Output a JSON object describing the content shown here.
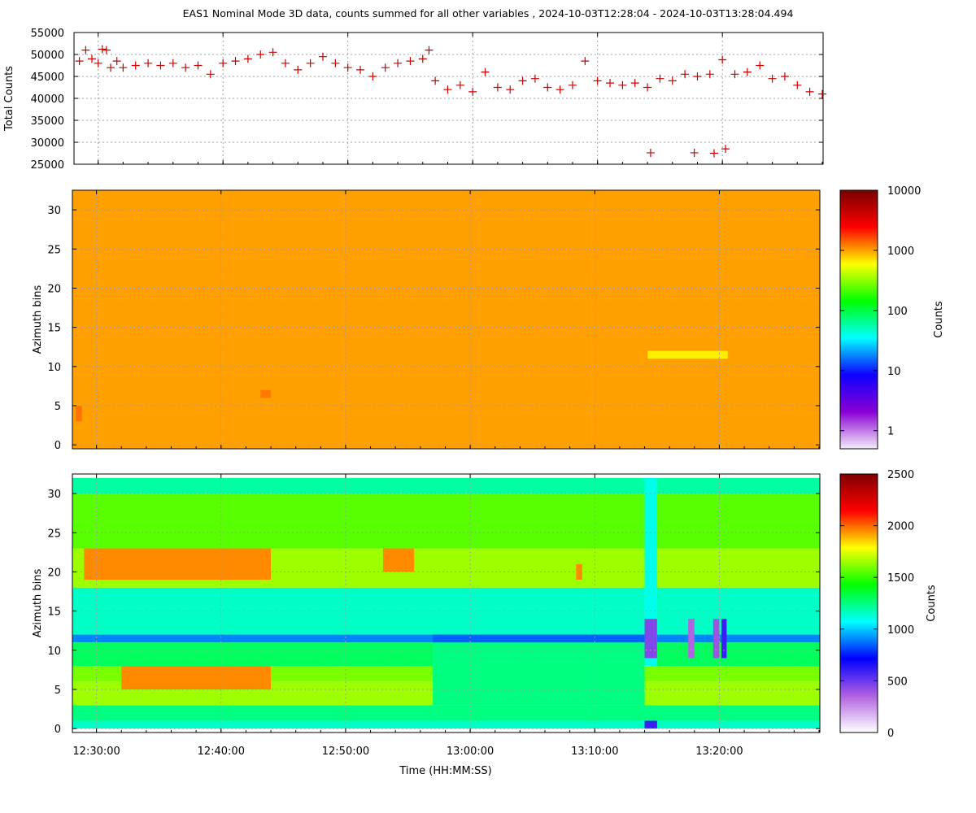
{
  "title": "EAS1  Nominal Mode 3D data, counts summed for all other variables ,  2024-10-03T12:28:04 - 2024-10-03T13:28:04.494",
  "xlabel": "Time (HH:MM:SS)",
  "xticks": [
    "12:30:00",
    "12:40:00",
    "12:50:00",
    "13:00:00",
    "13:10:00",
    "13:20:00"
  ],
  "colors": {
    "series": "#cc0000",
    "grid": "#a0a0a0"
  },
  "chart_data": [
    {
      "type": "scatter",
      "marker": "plus",
      "ylabel": "Total Counts",
      "xlim": [
        "12:28:04",
        "13:28:04"
      ],
      "ylim": [
        25000,
        55000
      ],
      "yticks": [
        "25000",
        "30000",
        "35000",
        "40000",
        "45000",
        "50000",
        "55000"
      ],
      "grid": true,
      "points": [
        [
          "12:28:30",
          48500
        ],
        [
          "12:29:00",
          51000
        ],
        [
          "12:29:30",
          49000
        ],
        [
          "12:30:00",
          48000
        ],
        [
          "12:30:20",
          51200
        ],
        [
          "12:30:40",
          51000
        ],
        [
          "12:31:00",
          47000
        ],
        [
          "12:31:30",
          48500
        ],
        [
          "12:32:00",
          47000
        ],
        [
          "12:33:00",
          47500
        ],
        [
          "12:34:00",
          48000
        ],
        [
          "12:35:00",
          47500
        ],
        [
          "12:36:00",
          48000
        ],
        [
          "12:37:00",
          47000
        ],
        [
          "12:38:00",
          47500
        ],
        [
          "12:39:00",
          45500
        ],
        [
          "12:40:00",
          48000
        ],
        [
          "12:41:00",
          48500
        ],
        [
          "12:42:00",
          49000
        ],
        [
          "12:43:00",
          50000
        ],
        [
          "12:44:00",
          50500
        ],
        [
          "12:45:00",
          48000
        ],
        [
          "12:46:00",
          46500
        ],
        [
          "12:47:00",
          48000
        ],
        [
          "12:48:00",
          49500
        ],
        [
          "12:49:00",
          48000
        ],
        [
          "12:50:00",
          47000
        ],
        [
          "12:51:00",
          46500
        ],
        [
          "12:52:00",
          45000
        ],
        [
          "12:53:00",
          47000
        ],
        [
          "12:54:00",
          48000
        ],
        [
          "12:55:00",
          48500
        ],
        [
          "12:56:00",
          49000
        ],
        [
          "12:56:30",
          51000
        ],
        [
          "12:57:00",
          44000
        ],
        [
          "12:58:00",
          42000
        ],
        [
          "12:59:00",
          43000
        ],
        [
          "13:00:00",
          41500
        ],
        [
          "13:01:00",
          46000
        ],
        [
          "13:02:00",
          42500
        ],
        [
          "13:03:00",
          42000
        ],
        [
          "13:04:00",
          44000
        ],
        [
          "13:05:00",
          44500
        ],
        [
          "13:06:00",
          42500
        ],
        [
          "13:07:00",
          42000
        ],
        [
          "13:08:00",
          43000
        ],
        [
          "13:09:00",
          48500
        ],
        [
          "13:10:00",
          44000
        ],
        [
          "13:11:00",
          43500
        ],
        [
          "13:12:00",
          43000
        ],
        [
          "13:13:00",
          43500
        ],
        [
          "13:14:00",
          42500
        ],
        [
          "13:14:15",
          27600
        ],
        [
          "13:15:00",
          44500
        ],
        [
          "13:16:00",
          44000
        ],
        [
          "13:17:00",
          45500
        ],
        [
          "13:17:45",
          27600
        ],
        [
          "13:18:00",
          45000
        ],
        [
          "13:19:00",
          45500
        ],
        [
          "13:19:20",
          27500
        ],
        [
          "13:20:00",
          48800
        ],
        [
          "13:20:15",
          28500
        ],
        [
          "13:21:00",
          45500
        ],
        [
          "13:22:00",
          46000
        ],
        [
          "13:23:00",
          47500
        ],
        [
          "13:24:00",
          44500
        ],
        [
          "13:25:00",
          45000
        ],
        [
          "13:26:00",
          43000
        ],
        [
          "13:27:00",
          41500
        ],
        [
          "13:28:00",
          41000
        ]
      ]
    },
    {
      "type": "heatmap",
      "ylabel": "Azimuth bins",
      "xlim": [
        "12:28:04",
        "13:28:04"
      ],
      "ylim": [
        0,
        32
      ],
      "yticks": [
        "0",
        "5",
        "10",
        "15",
        "20",
        "25",
        "30"
      ],
      "colorbar": {
        "label": "Counts",
        "scale": "log",
        "range": [
          0.5,
          10000
        ],
        "ticks": [
          "1",
          "10",
          "100",
          "1000",
          "10000"
        ],
        "colors": [
          "#f4eefa",
          "#8a00d4",
          "#1000ff",
          "#00ffff",
          "#00ff00",
          "#ffff00",
          "#ff0000",
          "#7a0000"
        ]
      },
      "background_counts": 1000,
      "patches": [
        {
          "t0": "12:28:20",
          "t1": "12:28:50",
          "bin0": 3,
          "bin1": 5,
          "counts": 1300
        },
        {
          "t0": "12:43:10",
          "t1": "12:44:00",
          "bin0": 6,
          "bin1": 7,
          "counts": 1250
        },
        {
          "t0": "13:14:15",
          "t1": "13:20:40",
          "bin0": 11,
          "bin1": 12,
          "counts": 650
        }
      ]
    },
    {
      "type": "heatmap",
      "ylabel": "Azimuth bins",
      "xlim": [
        "12:28:04",
        "13:28:04"
      ],
      "ylim": [
        0,
        32
      ],
      "yticks": [
        "0",
        "5",
        "10",
        "15",
        "20",
        "25",
        "30"
      ],
      "colorbar": {
        "label": "Counts",
        "scale": "linear",
        "range": [
          0,
          2500
        ],
        "ticks": [
          "0",
          "500",
          "1000",
          "1500",
          "2000",
          "2500"
        ],
        "colors": [
          "#ffffff",
          "#b060e0",
          "#0000ff",
          "#00ffff",
          "#00ff00",
          "#ffff00",
          "#ff0000",
          "#800000"
        ]
      },
      "bands": [
        {
          "bin0": 0,
          "bin1": 1,
          "counts": 1150
        },
        {
          "bin0": 1,
          "bin1": 3,
          "counts": 1250
        },
        {
          "bin0": 3,
          "bin1": 6,
          "counts": 1650
        },
        {
          "bin0": 6,
          "bin1": 8,
          "counts": 1600
        },
        {
          "bin0": 8,
          "bin1": 11,
          "counts": 1300
        },
        {
          "bin0": 11,
          "bin1": 12,
          "counts": 900
        },
        {
          "bin0": 12,
          "bin1": 18,
          "counts": 1150
        },
        {
          "bin0": 18,
          "bin1": 23,
          "counts": 1650
        },
        {
          "bin0": 23,
          "bin1": 30,
          "counts": 1550
        },
        {
          "bin0": 30,
          "bin1": 32,
          "counts": 1200
        }
      ],
      "patches": [
        {
          "t0": "12:29:00",
          "t1": "12:44:00",
          "bin0": 19,
          "bin1": 23,
          "counts": 1950
        },
        {
          "t0": "12:32:00",
          "t1": "12:44:00",
          "bin0": 5,
          "bin1": 8,
          "counts": 1950
        },
        {
          "t0": "12:53:00",
          "t1": "12:55:30",
          "bin0": 20,
          "bin1": 23,
          "counts": 1950
        },
        {
          "t0": "12:57:00",
          "t1": "13:14:00",
          "bin0": 3,
          "bin1": 11,
          "counts": 1250
        },
        {
          "t0": "12:57:00",
          "t1": "13:14:00",
          "bin0": 11,
          "bin1": 12,
          "counts": 850
        },
        {
          "t0": "13:14:00",
          "t1": "13:15:00",
          "bin0": 8,
          "bin1": 32,
          "counts": 1100
        },
        {
          "t0": "13:14:00",
          "t1": "13:15:00",
          "bin0": 9,
          "bin1": 14,
          "counts": 450
        },
        {
          "t0": "13:14:00",
          "t1": "13:15:00",
          "bin0": 0,
          "bin1": 1,
          "counts": 600
        },
        {
          "t0": "13:17:30",
          "t1": "13:18:00",
          "bin0": 9,
          "bin1": 14,
          "counts": 350
        },
        {
          "t0": "13:19:30",
          "t1": "13:20:00",
          "bin0": 9,
          "bin1": 14,
          "counts": 400
        },
        {
          "t0": "13:20:10",
          "t1": "13:20:35",
          "bin0": 9,
          "bin1": 14,
          "counts": 600
        },
        {
          "t0": "13:08:30",
          "t1": "13:09:00",
          "bin0": 19,
          "bin1": 21,
          "counts": 1950
        }
      ]
    }
  ]
}
